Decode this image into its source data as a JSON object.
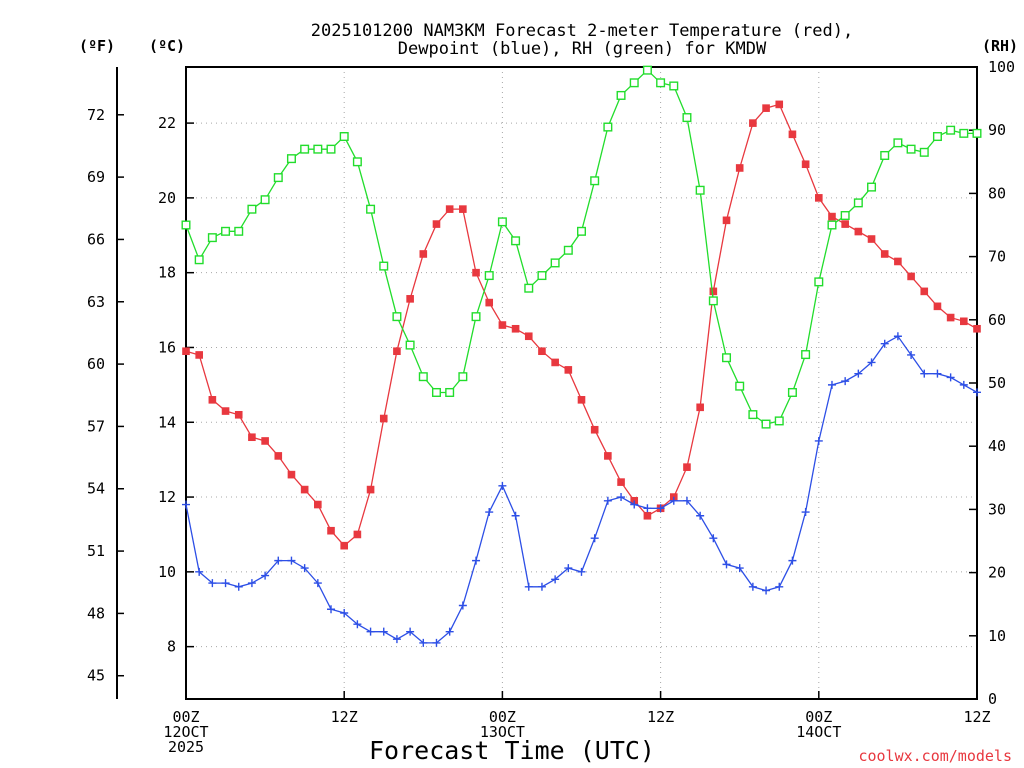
{
  "chart_data": {
    "type": "line",
    "title_lines": [
      "2025101200 NAM3KM Forecast 2-meter Temperature (red),",
      "Dewpoint (blue), RH (green) for KMDW"
    ],
    "xlabel": "Forecast Time (UTC)",
    "credit": "coolwx.com/models",
    "unit_labels": {
      "fahrenheit": "(ºF)",
      "celsius": "(ºC)",
      "rh": "(RH)"
    },
    "x_range_hours": [
      0,
      60
    ],
    "x_ticks": [
      {
        "hour": 0,
        "lines": [
          "00Z",
          "12OCT",
          "2025"
        ]
      },
      {
        "hour": 12,
        "lines": [
          "12Z"
        ]
      },
      {
        "hour": 24,
        "lines": [
          "00Z",
          "13OCT"
        ]
      },
      {
        "hour": 36,
        "lines": [
          "12Z"
        ]
      },
      {
        "hour": 48,
        "lines": [
          "00Z",
          "14OCT"
        ]
      },
      {
        "hour": 60,
        "lines": [
          "12Z"
        ]
      }
    ],
    "celsius_axis": {
      "range": [
        6.6,
        23.5
      ],
      "ticks": [
        "8",
        "10",
        "12",
        "14",
        "16",
        "18",
        "20",
        "22"
      ]
    },
    "fahrenheit_axis": {
      "ticks": [
        "45",
        "48",
        "51",
        "54",
        "57",
        "60",
        "63",
        "66",
        "69",
        "72"
      ]
    },
    "rh_axis": {
      "range": [
        0,
        100
      ],
      "ticks": [
        "0",
        "10",
        "20",
        "30",
        "40",
        "50",
        "60",
        "70",
        "80",
        "90",
        "100"
      ]
    },
    "x": [
      0,
      1,
      2,
      3,
      4,
      5,
      6,
      7,
      8,
      9,
      10,
      11,
      12,
      13,
      14,
      15,
      16,
      17,
      18,
      19,
      20,
      21,
      22,
      23,
      24,
      25,
      26,
      27,
      28,
      29,
      30,
      31,
      32,
      33,
      34,
      35,
      36,
      37,
      38,
      39,
      40,
      41,
      42,
      43,
      44,
      45,
      46,
      47,
      48,
      49,
      50,
      51,
      52,
      53,
      54,
      55,
      56,
      57,
      58,
      59,
      60
    ],
    "series": [
      {
        "name": "2-meter Temperature",
        "unit": "C",
        "color": "#e8383f",
        "marker": "filled-square",
        "values": [
          15.9,
          15.8,
          14.6,
          14.3,
          14.2,
          13.6,
          13.5,
          13.1,
          12.6,
          12.2,
          11.8,
          11.1,
          10.7,
          11.0,
          12.2,
          14.1,
          15.9,
          17.3,
          18.5,
          19.3,
          19.7,
          19.7,
          18.0,
          17.2,
          16.6,
          16.5,
          16.3,
          15.9,
          15.6,
          15.4,
          14.6,
          13.8,
          13.1,
          12.4,
          11.9,
          11.5,
          11.7,
          12.0,
          12.8,
          14.4,
          17.5,
          19.4,
          20.8,
          22.0,
          22.4,
          22.5,
          21.7,
          20.9,
          20.0,
          19.5,
          19.3,
          19.1,
          18.9,
          18.5,
          18.3,
          17.9,
          17.5,
          17.1,
          16.8,
          16.7,
          16.5
        ]
      },
      {
        "name": "Dewpoint",
        "unit": "C",
        "color": "#2d4fe6",
        "marker": "plus",
        "values": [
          11.8,
          10.0,
          9.7,
          9.7,
          9.6,
          9.7,
          9.9,
          10.3,
          10.3,
          10.1,
          9.7,
          9.0,
          8.9,
          8.6,
          8.4,
          8.4,
          8.2,
          8.4,
          8.1,
          8.1,
          8.4,
          9.1,
          10.3,
          11.6,
          12.3,
          11.5,
          9.6,
          9.6,
          9.8,
          10.1,
          10.0,
          10.9,
          11.9,
          12.0,
          11.8,
          11.7,
          11.7,
          11.9,
          11.9,
          11.5,
          10.9,
          10.2,
          10.1,
          9.6,
          9.5,
          9.6,
          10.3,
          11.6,
          13.5,
          15.0,
          15.1,
          15.3,
          15.6,
          16.1,
          16.3,
          15.8,
          15.3,
          15.3,
          15.2,
          15.0,
          14.8
        ]
      },
      {
        "name": "RH",
        "unit": "%",
        "color": "#22dd2c",
        "marker": "open-square",
        "values": [
          75,
          69.5,
          73,
          74,
          74,
          77.5,
          79,
          82.5,
          85.5,
          87,
          87,
          87,
          89,
          85,
          77.5,
          68.5,
          60.5,
          56,
          51,
          48.5,
          48.5,
          51,
          60.5,
          67,
          75.5,
          72.5,
          65,
          67,
          69,
          71,
          74,
          82,
          90.5,
          95.5,
          97.5,
          99.5,
          97.5,
          97,
          92,
          80.5,
          63,
          54,
          49.5,
          45,
          43.5,
          44,
          48.5,
          54.5,
          66,
          75,
          76.5,
          78.5,
          81,
          86,
          88,
          87,
          86.5,
          89,
          90,
          89.5,
          89.5
        ]
      }
    ]
  }
}
